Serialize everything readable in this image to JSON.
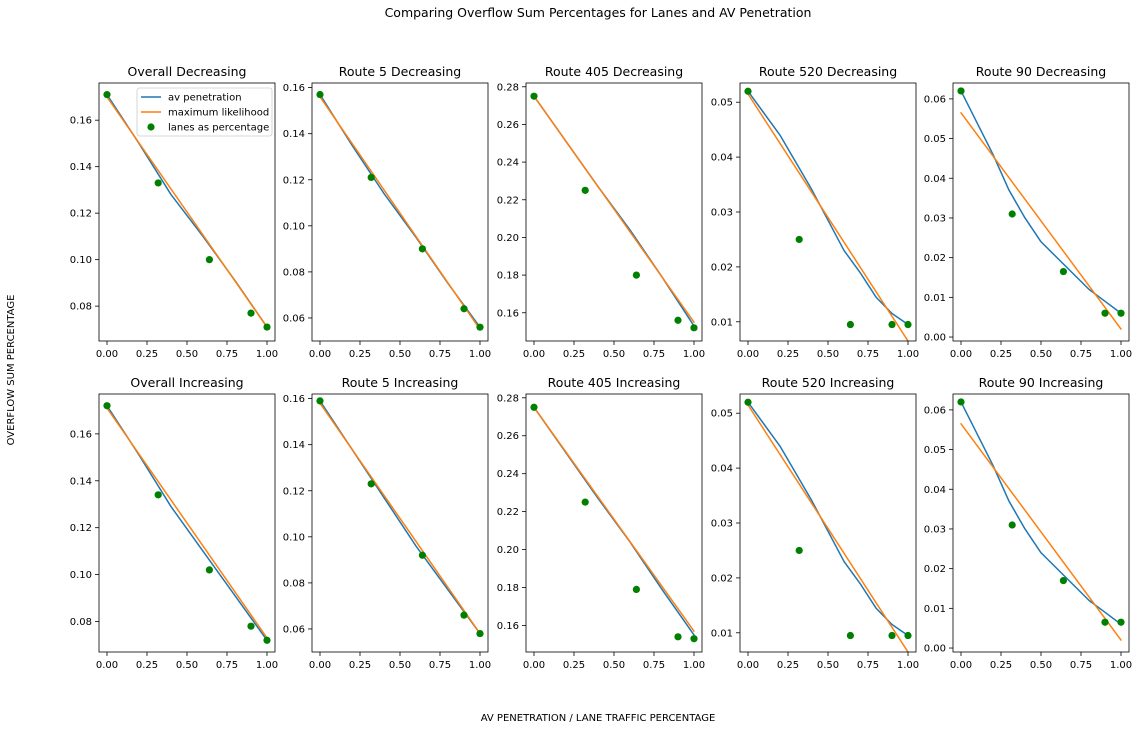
{
  "figure": {
    "suptitle": "Comparing Overflow Sum Percentages for Lanes and AV Penetration",
    "shared_ylabel": "OVERFLOW SUM PERCENTAGE",
    "shared_xlabel": "AV PENETRATION / LANE TRAFFIC PERCENTAGE",
    "colors": {
      "av": "#1f77b4",
      "ml": "#ff7f0e",
      "lanes": "#008000"
    }
  },
  "chart_data": [
    {
      "type": "line",
      "title": "Overall Decreasing",
      "xlim": [
        -0.05,
        1.05
      ],
      "ylim": [
        0.065,
        0.176
      ],
      "xticks": [
        0.0,
        0.25,
        0.5,
        0.75,
        1.0
      ],
      "yticks": [
        0.08,
        0.1,
        0.12,
        0.14,
        0.16
      ],
      "legend": {
        "location": "upper right",
        "entries": [
          "av penetration",
          "maximum likelihood",
          "lanes as percentage"
        ]
      },
      "series": [
        {
          "name": "av penetration",
          "kind": "line",
          "x": [
            0,
            0.2,
            0.4,
            0.6,
            0.8,
            1.0
          ],
          "y": [
            0.171,
            0.15,
            0.128,
            0.11,
            0.091,
            0.071
          ]
        },
        {
          "name": "maximum likelihood",
          "kind": "line",
          "x": [
            0,
            1.0
          ],
          "y": [
            0.17,
            0.071
          ]
        },
        {
          "name": "lanes as percentage",
          "kind": "scatter",
          "x": [
            0,
            0.32,
            0.64,
            0.9,
            1.0
          ],
          "y": [
            0.171,
            0.133,
            0.1,
            0.077,
            0.071
          ]
        }
      ]
    },
    {
      "type": "line",
      "title": "Route 5 Decreasing",
      "xlim": [
        -0.05,
        1.05
      ],
      "ylim": [
        0.05,
        0.162
      ],
      "xticks": [
        0.0,
        0.25,
        0.5,
        0.75,
        1.0
      ],
      "yticks": [
        0.06,
        0.08,
        0.1,
        0.12,
        0.14,
        0.16
      ],
      "series": [
        {
          "name": "av penetration",
          "kind": "line",
          "x": [
            0,
            0.2,
            0.4,
            0.6,
            0.8,
            1.0
          ],
          "y": [
            0.157,
            0.135,
            0.114,
            0.095,
            0.075,
            0.056
          ]
        },
        {
          "name": "maximum likelihood",
          "kind": "line",
          "x": [
            0,
            1.0
          ],
          "y": [
            0.156,
            0.055
          ]
        },
        {
          "name": "lanes as percentage",
          "kind": "scatter",
          "x": [
            0,
            0.32,
            0.64,
            0.9,
            1.0
          ],
          "y": [
            0.157,
            0.121,
            0.09,
            0.064,
            0.056
          ]
        }
      ]
    },
    {
      "type": "line",
      "title": "Route 405 Decreasing",
      "xlim": [
        -0.05,
        1.05
      ],
      "ylim": [
        0.145,
        0.282
      ],
      "xticks": [
        0.0,
        0.25,
        0.5,
        0.75,
        1.0
      ],
      "yticks": [
        0.16,
        0.18,
        0.2,
        0.22,
        0.24,
        0.26,
        0.28
      ],
      "series": [
        {
          "name": "av penetration",
          "kind": "line",
          "x": [
            0,
            0.2,
            0.4,
            0.6,
            0.8,
            1.0
          ],
          "y": [
            0.275,
            0.251,
            0.227,
            0.204,
            0.179,
            0.153
          ]
        },
        {
          "name": "maximum likelihood",
          "kind": "line",
          "x": [
            0,
            1.0
          ],
          "y": [
            0.275,
            0.155
          ]
        },
        {
          "name": "lanes as percentage",
          "kind": "scatter",
          "x": [
            0,
            0.32,
            0.64,
            0.9,
            1.0
          ],
          "y": [
            0.275,
            0.225,
            0.18,
            0.156,
            0.152
          ]
        }
      ]
    },
    {
      "type": "line",
      "title": "Route 520 Decreasing",
      "xlim": [
        -0.05,
        1.05
      ],
      "ylim": [
        0.0065,
        0.0535
      ],
      "xticks": [
        0.0,
        0.25,
        0.5,
        0.75,
        1.0
      ],
      "yticks": [
        0.01,
        0.02,
        0.03,
        0.04,
        0.05
      ],
      "series": [
        {
          "name": "av penetration",
          "kind": "line",
          "x": [
            0,
            0.2,
            0.4,
            0.6,
            0.7,
            0.8,
            0.9,
            1.0
          ],
          "y": [
            0.052,
            0.044,
            0.034,
            0.023,
            0.019,
            0.0145,
            0.0115,
            0.0095
          ]
        },
        {
          "name": "maximum likelihood",
          "kind": "line",
          "x": [
            0,
            1.0
          ],
          "y": [
            0.0515,
            0.0065
          ]
        },
        {
          "name": "lanes as percentage",
          "kind": "scatter",
          "x": [
            0,
            0.32,
            0.64,
            0.9,
            1.0
          ],
          "y": [
            0.052,
            0.025,
            0.0095,
            0.0095,
            0.0095
          ]
        }
      ]
    },
    {
      "type": "line",
      "title": "Route 90 Decreasing",
      "xlim": [
        -0.05,
        1.05
      ],
      "ylim": [
        -0.001,
        0.064
      ],
      "xticks": [
        0.0,
        0.25,
        0.5,
        0.75,
        1.0
      ],
      "yticks": [
        0.0,
        0.01,
        0.02,
        0.03,
        0.04,
        0.05,
        0.06
      ],
      "series": [
        {
          "name": "av penetration",
          "kind": "line",
          "x": [
            0,
            0.1,
            0.2,
            0.3,
            0.4,
            0.5,
            0.6,
            0.7,
            0.8,
            0.9,
            1.0
          ],
          "y": [
            0.062,
            0.054,
            0.046,
            0.037,
            0.03,
            0.024,
            0.02,
            0.016,
            0.012,
            0.009,
            0.006
          ]
        },
        {
          "name": "maximum likelihood",
          "kind": "line",
          "x": [
            0,
            1.0
          ],
          "y": [
            0.0565,
            0.002
          ]
        },
        {
          "name": "lanes as percentage",
          "kind": "scatter",
          "x": [
            0,
            0.32,
            0.64,
            0.9,
            1.0
          ],
          "y": [
            0.062,
            0.031,
            0.0165,
            0.006,
            0.006
          ]
        }
      ]
    },
    {
      "type": "line",
      "title": "Overall Increasing",
      "xlim": [
        -0.05,
        1.05
      ],
      "ylim": [
        0.067,
        0.177
      ],
      "xticks": [
        0.0,
        0.25,
        0.5,
        0.75,
        1.0
      ],
      "yticks": [
        0.08,
        0.1,
        0.12,
        0.14,
        0.16
      ],
      "series": [
        {
          "name": "av penetration",
          "kind": "line",
          "x": [
            0,
            0.2,
            0.4,
            0.6,
            0.8,
            1.0
          ],
          "y": [
            0.172,
            0.151,
            0.129,
            0.11,
            0.091,
            0.072
          ]
        },
        {
          "name": "maximum likelihood",
          "kind": "line",
          "x": [
            0,
            1.0
          ],
          "y": [
            0.171,
            0.073
          ]
        },
        {
          "name": "lanes as percentage",
          "kind": "scatter",
          "x": [
            0,
            0.32,
            0.64,
            0.9,
            1.0
          ],
          "y": [
            0.172,
            0.134,
            0.102,
            0.078,
            0.072
          ]
        }
      ]
    },
    {
      "type": "line",
      "title": "Route 5 Increasing",
      "xlim": [
        -0.05,
        1.05
      ],
      "ylim": [
        0.05,
        0.162
      ],
      "xticks": [
        0.0,
        0.25,
        0.5,
        0.75,
        1.0
      ],
      "yticks": [
        0.06,
        0.08,
        0.1,
        0.12,
        0.14,
        0.16
      ],
      "series": [
        {
          "name": "av penetration",
          "kind": "line",
          "x": [
            0,
            0.2,
            0.4,
            0.6,
            0.8,
            1.0
          ],
          "y": [
            0.159,
            0.138,
            0.117,
            0.096,
            0.077,
            0.058
          ]
        },
        {
          "name": "maximum likelihood",
          "kind": "line",
          "x": [
            0,
            1.0
          ],
          "y": [
            0.158,
            0.058
          ]
        },
        {
          "name": "lanes as percentage",
          "kind": "scatter",
          "x": [
            0,
            0.32,
            0.64,
            0.9,
            1.0
          ],
          "y": [
            0.159,
            0.123,
            0.092,
            0.066,
            0.058
          ]
        }
      ]
    },
    {
      "type": "line",
      "title": "Route 405 Increasing",
      "xlim": [
        -0.05,
        1.05
      ],
      "ylim": [
        0.146,
        0.282
      ],
      "xticks": [
        0.0,
        0.25,
        0.5,
        0.75,
        1.0
      ],
      "yticks": [
        0.16,
        0.18,
        0.2,
        0.22,
        0.24,
        0.26,
        0.28
      ],
      "series": [
        {
          "name": "av penetration",
          "kind": "line",
          "x": [
            0,
            0.2,
            0.4,
            0.6,
            0.8,
            1.0
          ],
          "y": [
            0.275,
            0.251,
            0.227,
            0.204,
            0.179,
            0.155
          ]
        },
        {
          "name": "maximum likelihood",
          "kind": "line",
          "x": [
            0,
            1.0
          ],
          "y": [
            0.275,
            0.157
          ]
        },
        {
          "name": "lanes as percentage",
          "kind": "scatter",
          "x": [
            0,
            0.32,
            0.64,
            0.9,
            1.0
          ],
          "y": [
            0.275,
            0.225,
            0.179,
            0.154,
            0.153
          ]
        }
      ]
    },
    {
      "type": "line",
      "title": "Route 520 Increasing",
      "xlim": [
        -0.05,
        1.05
      ],
      "ylim": [
        0.0065,
        0.0535
      ],
      "xticks": [
        0.0,
        0.25,
        0.5,
        0.75,
        1.0
      ],
      "yticks": [
        0.01,
        0.02,
        0.03,
        0.04,
        0.05
      ],
      "series": [
        {
          "name": "av penetration",
          "kind": "line",
          "x": [
            0,
            0.2,
            0.4,
            0.6,
            0.7,
            0.8,
            0.9,
            1.0
          ],
          "y": [
            0.052,
            0.044,
            0.034,
            0.023,
            0.019,
            0.0145,
            0.0115,
            0.0095
          ]
        },
        {
          "name": "maximum likelihood",
          "kind": "line",
          "x": [
            0,
            1.0
          ],
          "y": [
            0.0515,
            0.0065
          ]
        },
        {
          "name": "lanes as percentage",
          "kind": "scatter",
          "x": [
            0,
            0.32,
            0.64,
            0.9,
            1.0
          ],
          "y": [
            0.052,
            0.025,
            0.0095,
            0.0095,
            0.0095
          ]
        }
      ]
    },
    {
      "type": "line",
      "title": "Route 90 Increasing",
      "xlim": [
        -0.05,
        1.05
      ],
      "ylim": [
        -0.001,
        0.064
      ],
      "xticks": [
        0.0,
        0.25,
        0.5,
        0.75,
        1.0
      ],
      "yticks": [
        0.0,
        0.01,
        0.02,
        0.03,
        0.04,
        0.05,
        0.06
      ],
      "series": [
        {
          "name": "av penetration",
          "kind": "line",
          "x": [
            0,
            0.1,
            0.2,
            0.3,
            0.4,
            0.5,
            0.6,
            0.7,
            0.8,
            0.9,
            1.0
          ],
          "y": [
            0.062,
            0.054,
            0.046,
            0.037,
            0.03,
            0.024,
            0.02,
            0.016,
            0.012,
            0.009,
            0.006
          ]
        },
        {
          "name": "maximum likelihood",
          "kind": "line",
          "x": [
            0,
            1.0
          ],
          "y": [
            0.0565,
            0.002
          ]
        },
        {
          "name": "lanes as percentage",
          "kind": "scatter",
          "x": [
            0,
            0.32,
            0.64,
            0.9,
            1.0
          ],
          "y": [
            0.062,
            0.031,
            0.017,
            0.0065,
            0.0065
          ]
        }
      ]
    }
  ]
}
